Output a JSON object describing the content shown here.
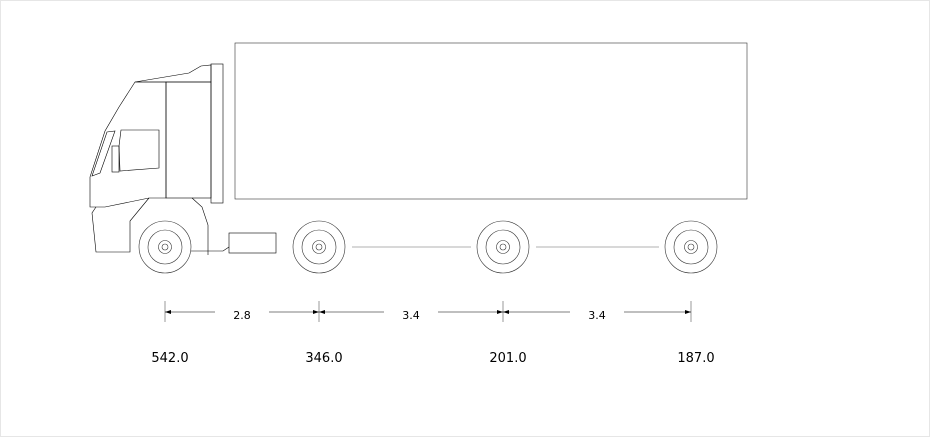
{
  "axle_spacings": [
    {
      "label": "2.8"
    },
    {
      "label": "3.4"
    },
    {
      "label": "3.4"
    }
  ],
  "axle_loads": [
    {
      "label": "542.0"
    },
    {
      "label": "346.0"
    },
    {
      "label": "201.0"
    },
    {
      "label": "187.0"
    }
  ]
}
